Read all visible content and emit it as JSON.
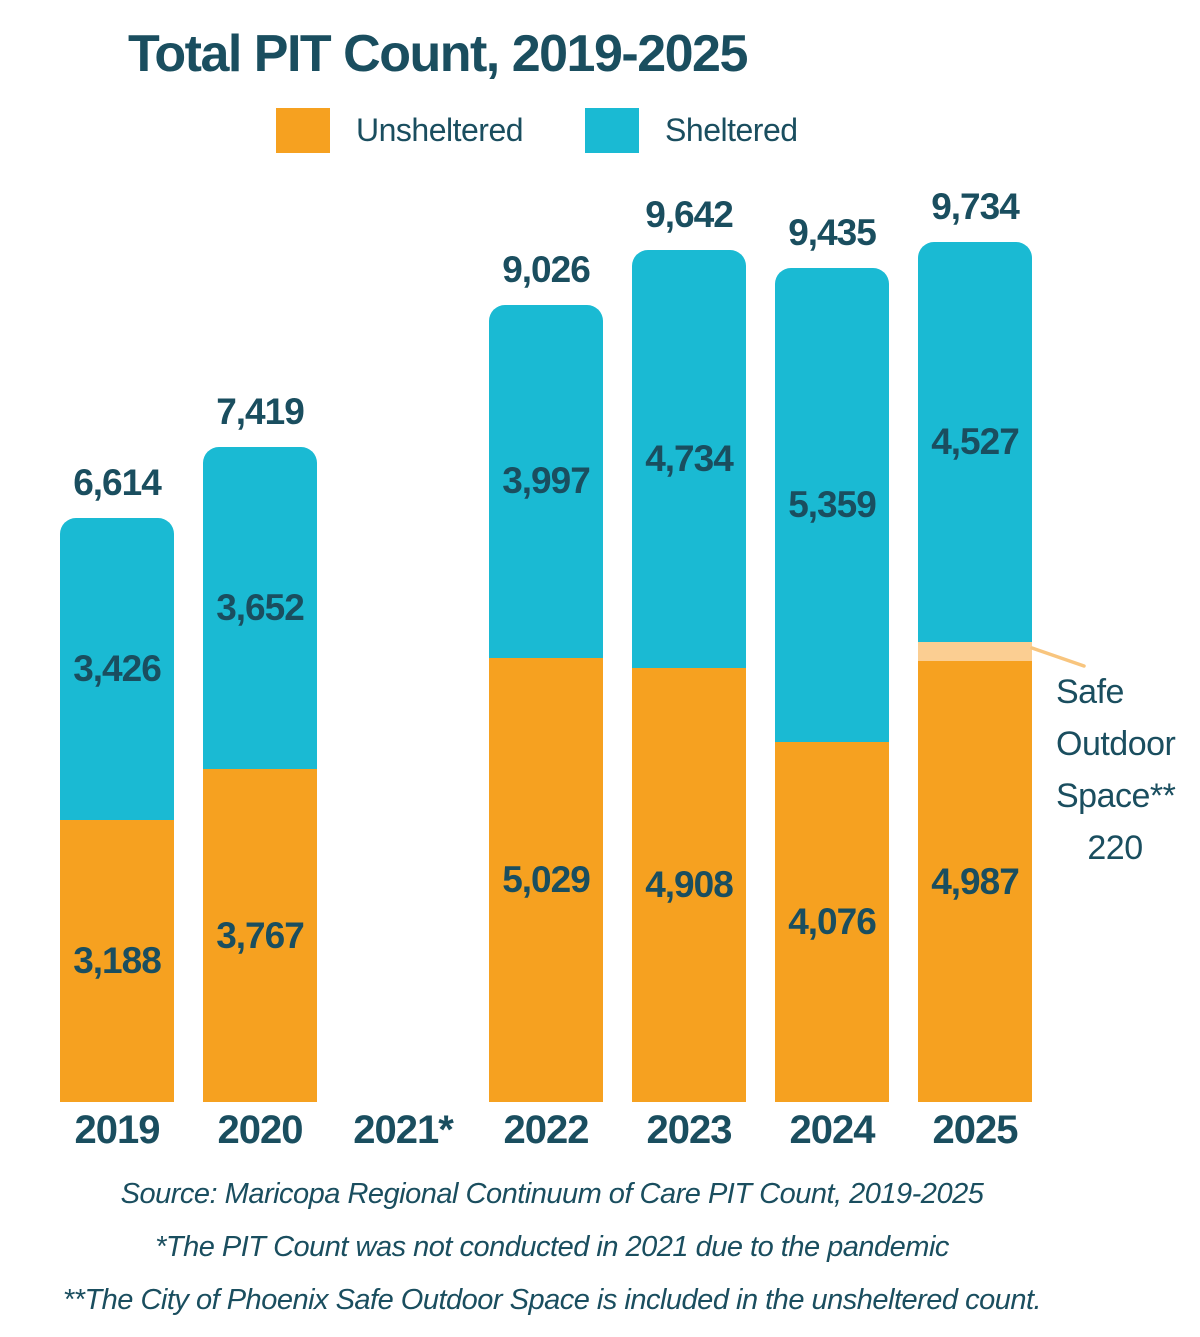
{
  "title": "Total PIT Count, 2019-2025",
  "legend": [
    {
      "label": "Unsheltered",
      "color_key": "unsheltered"
    },
    {
      "label": "Sheltered",
      "color_key": "sheltered"
    }
  ],
  "colors": {
    "unsheltered": "#F6A120",
    "sheltered": "#1ABAD3",
    "safe_outdoor_space": "#FBCE92",
    "leader_line": "#F8C57E",
    "text": "#1A4E5F"
  },
  "annotation": {
    "lines": [
      "Safe",
      "Outdoor",
      "Space**"
    ],
    "value": "220"
  },
  "footer": {
    "source": "Source: Maricopa Regional Continuum of Care PIT Count, 2019-2025",
    "note1": "*The PIT Count was not conducted in 2021 due to the pandemic",
    "note2": "**The City of Phoenix Safe Outdoor Space is included in the unsheltered count."
  },
  "chart_data": {
    "type": "bar",
    "stacked": true,
    "title": "Total PIT Count, 2019-2025",
    "categories": [
      "2019",
      "2020",
      "2021*",
      "2022",
      "2023",
      "2024",
      "2025"
    ],
    "series": [
      {
        "name": "Unsheltered",
        "color_key": "unsheltered",
        "values": [
          3188,
          3767,
          null,
          5029,
          4908,
          4076,
          4987
        ]
      },
      {
        "name": "Safe Outdoor Space**",
        "color_key": "safe_outdoor_space",
        "values": [
          0,
          0,
          null,
          0,
          0,
          0,
          220
        ]
      },
      {
        "name": "Sheltered",
        "color_key": "sheltered",
        "values": [
          3426,
          3652,
          null,
          3997,
          4734,
          5359,
          4527
        ]
      }
    ],
    "totals": [
      6614,
      7419,
      null,
      9026,
      9642,
      9435,
      9734
    ],
    "ylim": [
      0,
      9734
    ],
    "grid": false,
    "legend_position": "top",
    "missing_data_note": "2021 bar absent (count not conducted)"
  }
}
